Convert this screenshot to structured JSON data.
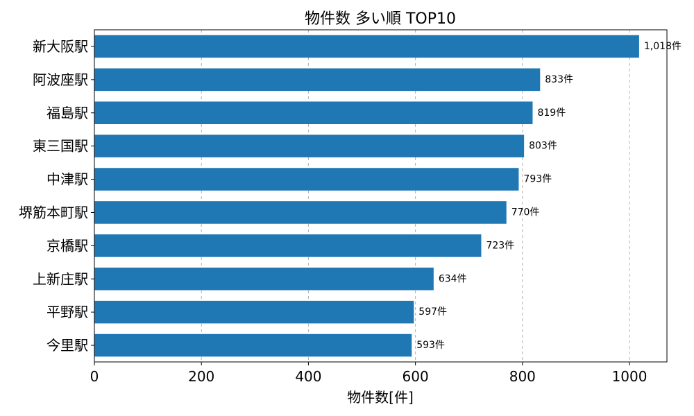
{
  "chart_data": {
    "type": "bar",
    "orientation": "horizontal",
    "title": "物件数 多い順 TOP10",
    "xlabel": "物件数[件]",
    "ylabel": "",
    "xlim": [
      0,
      1070
    ],
    "xticks": [
      0,
      200,
      400,
      600,
      800,
      1000
    ],
    "grid": "x-dashed",
    "color": "#1f77b4",
    "categories": [
      "新大阪駅",
      "阿波座駅",
      "福島駅",
      "東三国駅",
      "中津駅",
      "堺筋本町駅",
      "京橋駅",
      "上新庄駅",
      "平野駅",
      "今里駅"
    ],
    "values": [
      1018,
      833,
      819,
      803,
      793,
      770,
      723,
      634,
      597,
      593
    ],
    "data_labels": [
      "1,018件",
      "833件",
      "819件",
      "803件",
      "793件",
      "770件",
      "723件",
      "634件",
      "597件",
      "593件"
    ]
  }
}
